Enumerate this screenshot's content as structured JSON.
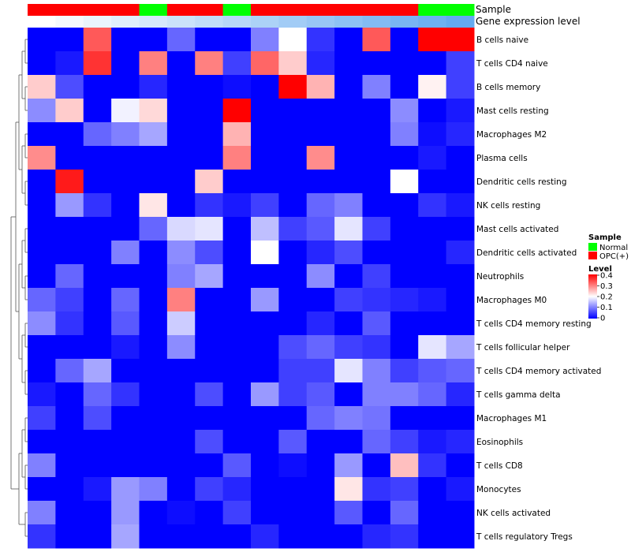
{
  "chart_data": {
    "type": "heatmap",
    "annotation_labels": {
      "sample": "Sample",
      "gene_expression": "Gene expression level"
    },
    "sample_annotation": [
      "OPC(+)",
      "OPC(+)",
      "OPC(+)",
      "OPC(+)",
      "Normal",
      "OPC(+)",
      "OPC(+)",
      "Normal",
      "OPC(+)",
      "OPC(+)",
      "OPC(+)",
      "OPC(+)",
      "OPC(+)",
      "OPC(+)",
      "Normal",
      "Normal"
    ],
    "gene_expression_annotation": [
      0.0,
      0.02,
      0.04,
      0.06,
      0.08,
      0.1,
      0.12,
      0.14,
      0.16,
      0.18,
      0.2,
      0.22,
      0.24,
      0.26,
      0.28,
      0.3
    ],
    "rows": [
      "B cells naive",
      "T cells CD4 naive",
      "B cells memory",
      "Mast cells resting",
      "Macrophages M2",
      "Plasma cells",
      "Dendritic cells resting",
      "NK cells resting",
      "Mast cells activated",
      "Dendritic cells activated",
      "Neutrophils",
      "Macrophages M0",
      "T cells CD4 memory resting",
      "T cells follicular helper",
      "T cells CD4 memory activated",
      "T cells gamma delta",
      "Macrophages M1",
      "Eosinophils",
      "T cells CD8",
      "Monocytes",
      "NK cells activated",
      "T cells regulatory  Tregs"
    ],
    "values": [
      [
        0.0,
        0.0,
        0.33,
        0.0,
        0.0,
        0.08,
        0.0,
        0.0,
        0.1,
        0.2,
        0.04,
        0.0,
        0.33,
        0.0,
        0.4,
        0.4
      ],
      [
        0.0,
        0.02,
        0.36,
        0.0,
        0.3,
        0.0,
        0.3,
        0.05,
        0.32,
        0.24,
        0.03,
        0.0,
        0.0,
        0.0,
        0.0,
        0.05
      ],
      [
        0.24,
        0.06,
        0.0,
        0.0,
        0.03,
        0.0,
        0.0,
        0.01,
        0.0,
        0.4,
        0.26,
        0.0,
        0.1,
        0.0,
        0.21,
        0.05
      ],
      [
        0.11,
        0.24,
        0.0,
        0.19,
        0.23,
        0.0,
        0.0,
        0.4,
        0.0,
        0.0,
        0.0,
        0.0,
        0.0,
        0.11,
        0.0,
        0.02
      ],
      [
        0.0,
        0.0,
        0.08,
        0.1,
        0.13,
        0.0,
        0.0,
        0.26,
        0.0,
        0.0,
        0.0,
        0.0,
        0.0,
        0.1,
        0.01,
        0.03
      ],
      [
        0.29,
        0.0,
        0.0,
        0.0,
        0.0,
        0.0,
        0.0,
        0.3,
        0.0,
        0.0,
        0.29,
        0.0,
        0.0,
        0.0,
        0.02,
        0.0
      ],
      [
        0.0,
        0.38,
        0.0,
        0.0,
        0.0,
        0.0,
        0.24,
        0.0,
        0.0,
        0.0,
        0.0,
        0.0,
        0.0,
        0.2,
        0.0,
        0.0
      ],
      [
        0.0,
        0.12,
        0.04,
        0.0,
        0.22,
        0.0,
        0.04,
        0.02,
        0.05,
        0.0,
        0.08,
        0.1,
        0.0,
        0.0,
        0.04,
        0.02
      ],
      [
        0.0,
        0.0,
        0.0,
        0.0,
        0.08,
        0.17,
        0.18,
        0.0,
        0.15,
        0.05,
        0.07,
        0.18,
        0.05,
        0.0,
        0.0,
        0.0
      ],
      [
        0.0,
        0.0,
        0.0,
        0.1,
        0.0,
        0.11,
        0.06,
        0.0,
        0.2,
        0.0,
        0.03,
        0.06,
        0.0,
        0.0,
        0.0,
        0.03
      ],
      [
        0.0,
        0.08,
        0.0,
        0.0,
        0.0,
        0.1,
        0.13,
        0.0,
        0.0,
        0.0,
        0.11,
        0.0,
        0.05,
        0.0,
        0.0,
        0.0
      ],
      [
        0.08,
        0.05,
        0.0,
        0.08,
        0.0,
        0.3,
        0.0,
        0.0,
        0.12,
        0.0,
        0.0,
        0.05,
        0.04,
        0.03,
        0.02,
        0.0
      ],
      [
        0.11,
        0.04,
        0.0,
        0.07,
        0.0,
        0.16,
        0.0,
        0.0,
        0.0,
        0.0,
        0.03,
        0.0,
        0.07,
        0.0,
        0.0,
        0.0
      ],
      [
        0.0,
        0.0,
        0.0,
        0.02,
        0.0,
        0.11,
        0.0,
        0.0,
        0.0,
        0.06,
        0.08,
        0.05,
        0.04,
        0.0,
        0.18,
        0.13
      ],
      [
        0.0,
        0.08,
        0.13,
        0.0,
        0.0,
        0.0,
        0.0,
        0.0,
        0.0,
        0.05,
        0.05,
        0.18,
        0.1,
        0.05,
        0.07,
        0.08
      ],
      [
        0.02,
        0.0,
        0.08,
        0.04,
        0.0,
        0.0,
        0.06,
        0.0,
        0.12,
        0.05,
        0.07,
        0.0,
        0.1,
        0.1,
        0.08,
        0.03
      ],
      [
        0.05,
        0.0,
        0.06,
        0.0,
        0.0,
        0.0,
        0.0,
        0.0,
        0.0,
        0.0,
        0.08,
        0.1,
        0.09,
        0.0,
        0.0,
        0.0
      ],
      [
        0.0,
        0.0,
        0.0,
        0.0,
        0.0,
        0.0,
        0.06,
        0.0,
        0.0,
        0.07,
        0.0,
        0.0,
        0.08,
        0.05,
        0.02,
        0.03
      ],
      [
        0.1,
        0.0,
        0.0,
        0.0,
        0.0,
        0.0,
        0.0,
        0.07,
        0.0,
        0.01,
        0.0,
        0.12,
        0.0,
        0.25,
        0.04,
        0.0
      ],
      [
        0.0,
        0.0,
        0.02,
        0.12,
        0.1,
        0.0,
        0.05,
        0.03,
        0.0,
        0.0,
        0.0,
        0.22,
        0.04,
        0.05,
        0.0,
        0.02
      ],
      [
        0.1,
        0.0,
        0.0,
        0.12,
        0.0,
        0.01,
        0.0,
        0.05,
        0.0,
        0.0,
        0.0,
        0.07,
        0.0,
        0.08,
        0.0,
        0.0
      ],
      [
        0.04,
        0.0,
        0.0,
        0.13,
        0.0,
        0.0,
        0.0,
        0.0,
        0.03,
        0.0,
        0.0,
        0.0,
        0.03,
        0.04,
        0.0,
        0.0
      ]
    ],
    "color_scale": {
      "min": 0,
      "mid": 0.2,
      "max": 0.4,
      "low": "#0000ff",
      "mid_color": "#ffffff",
      "high": "#ff0000"
    },
    "legend": {
      "sample_title": "Sample",
      "sample_entries": [
        {
          "label": "Normal",
          "color": "#00ff00"
        },
        {
          "label": "OPC(+)",
          "color": "#ff0000"
        }
      ],
      "level_title": "Level",
      "level_ticks": [
        "0.4",
        "0.3",
        "0.2",
        "0.1",
        "0"
      ]
    },
    "grid": false,
    "dendrogram": "rows-left"
  }
}
